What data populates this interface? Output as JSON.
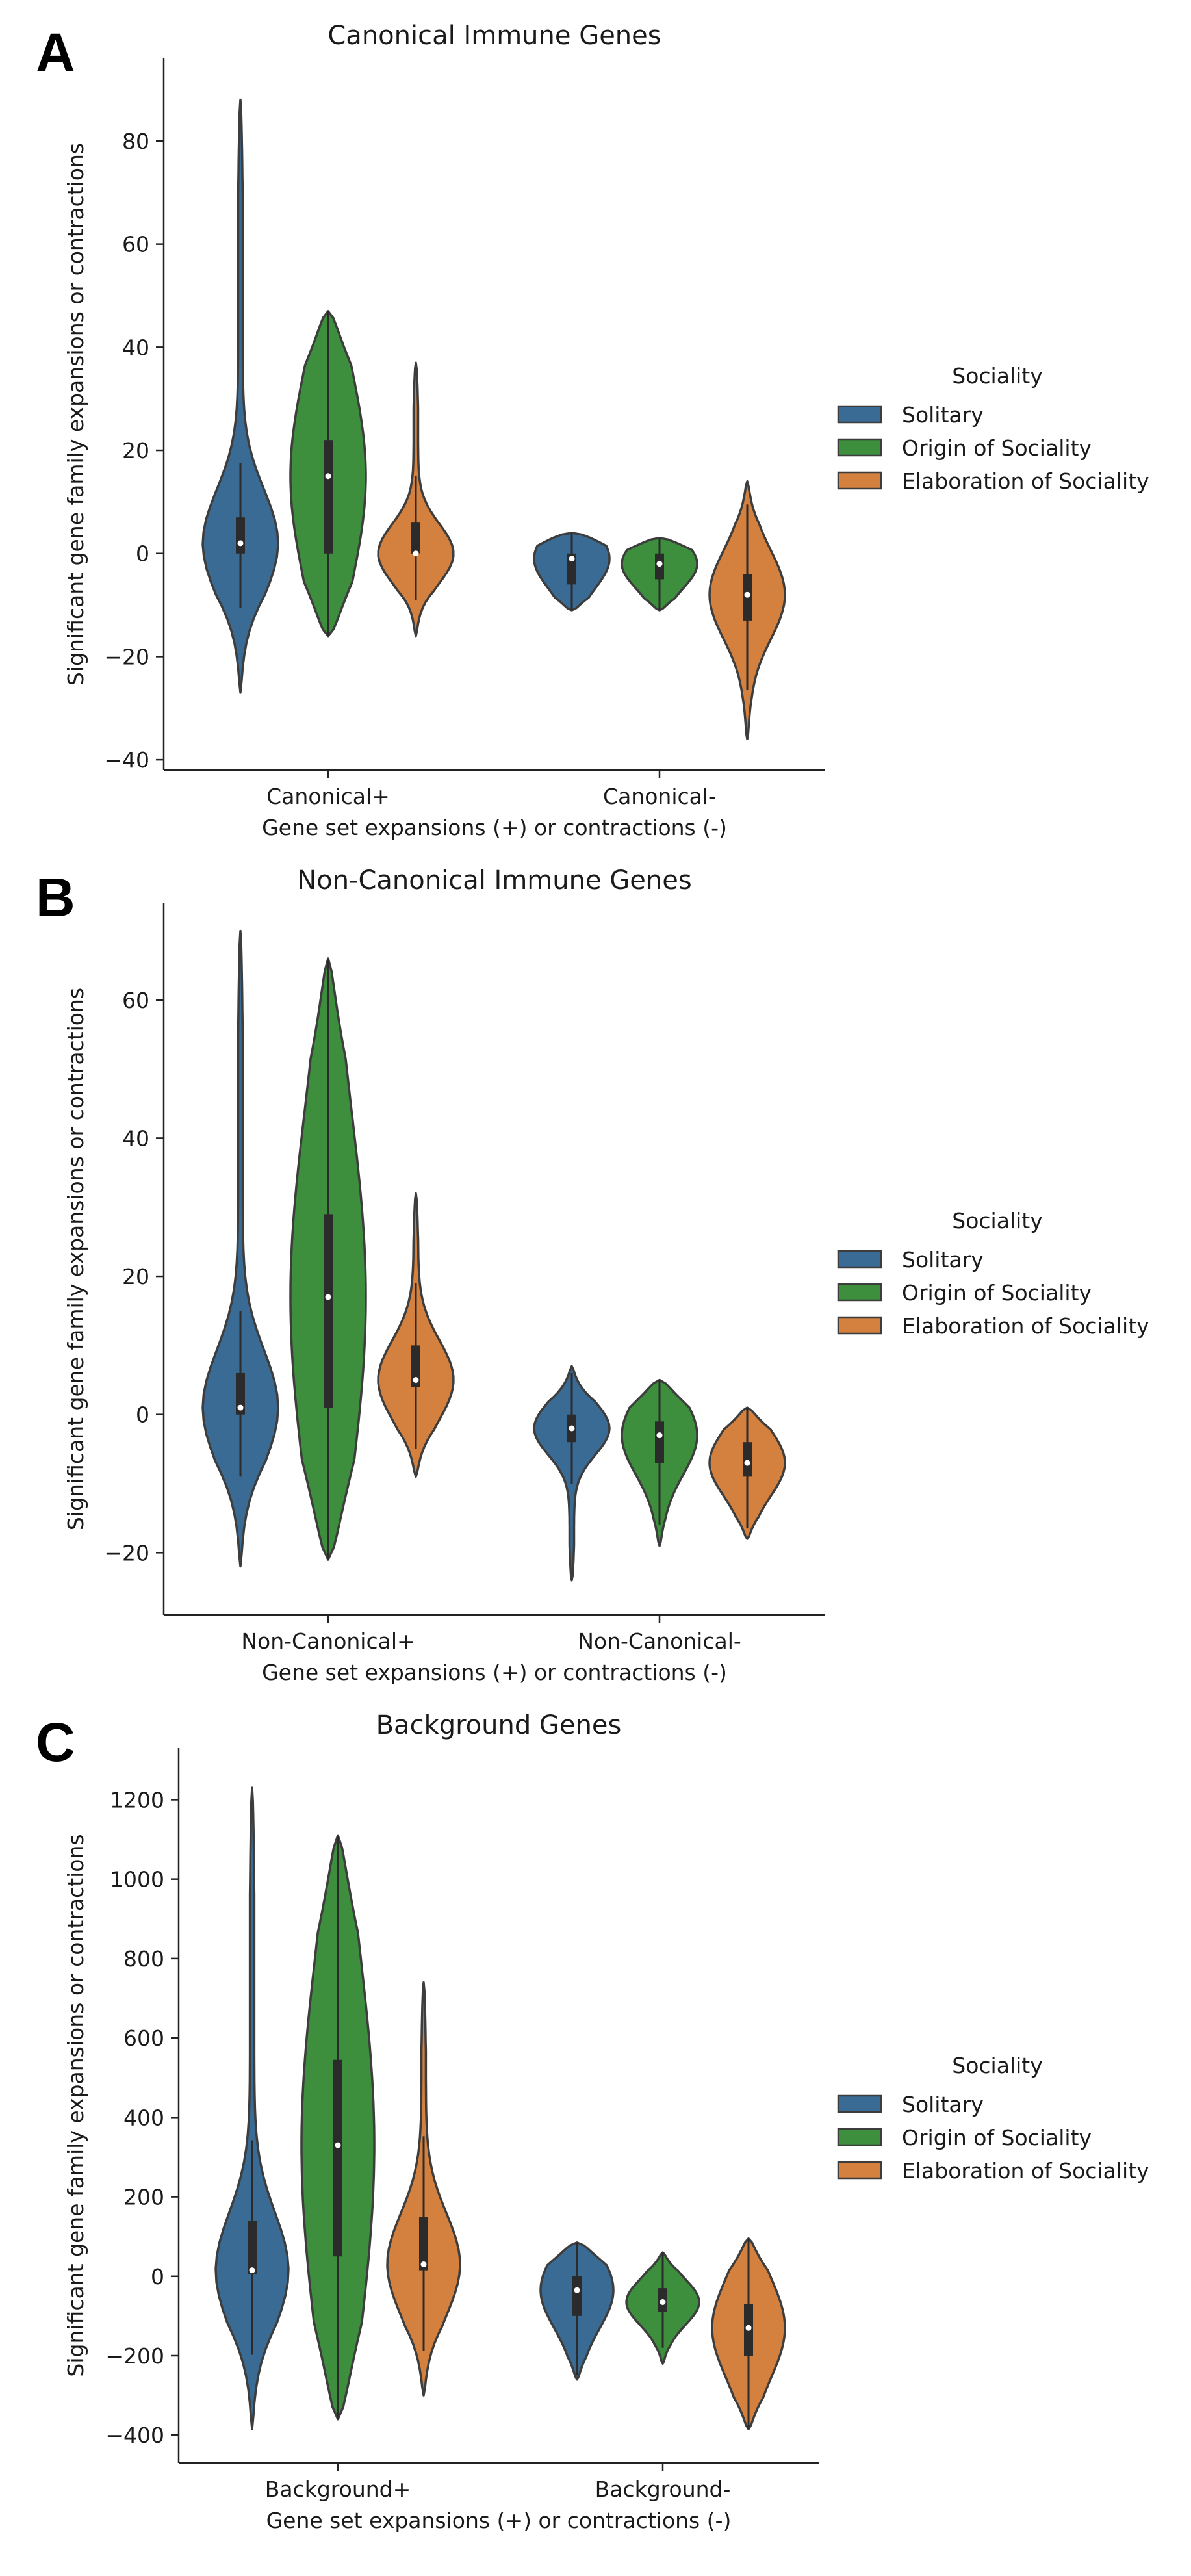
{
  "colors": {
    "solitary": "#3a6b94",
    "origin": "#3d8f3d",
    "elaboration": "#d4803f",
    "outline": "#3d3d3d"
  },
  "legend": {
    "title": "Sociality",
    "entries": [
      "Solitary",
      "Origin of Sociality",
      "Elaboration of Sociality"
    ]
  },
  "chart_data": [
    {
      "panel": "A",
      "type": "violin",
      "title": "Canonical Immune Genes",
      "xlabel": "Gene set expansions (+) or contractions (-)",
      "ylabel": "Significant gene family expansions or contractions",
      "categories": [
        "Canonical+",
        "Canonical-"
      ],
      "ylim": [
        -42,
        96
      ],
      "yticks": [
        -40,
        -20,
        0,
        20,
        40,
        60,
        80
      ],
      "series": [
        {
          "name": "Solitary",
          "min": [
            -27,
            -11
          ],
          "max": [
            88,
            4
          ],
          "q1": [
            0,
            -6
          ],
          "median": [
            2,
            -1
          ],
          "q3": [
            7,
            0
          ]
        },
        {
          "name": "Origin of Sociality",
          "min": [
            -16,
            -11
          ],
          "max": [
            47,
            3
          ],
          "q1": [
            0,
            -5
          ],
          "median": [
            15,
            -2
          ],
          "q3": [
            22,
            0
          ]
        },
        {
          "name": "Elaboration of Sociality",
          "min": [
            -16,
            -36
          ],
          "max": [
            37,
            14
          ],
          "q1": [
            0,
            -13
          ],
          "median": [
            0,
            -8
          ],
          "q3": [
            6,
            -4
          ]
        }
      ]
    },
    {
      "panel": "B",
      "type": "violin",
      "title": "Non-Canonical Immune Genes",
      "xlabel": "Gene set expansions (+) or contractions (-)",
      "ylabel": "Significant gene family expansions or contractions",
      "categories": [
        "Non-Canonical+",
        "Non-Canonical-"
      ],
      "ylim": [
        -29,
        74
      ],
      "yticks": [
        -20,
        0,
        20,
        40,
        60
      ],
      "series": [
        {
          "name": "Solitary",
          "min": [
            -22,
            -24
          ],
          "max": [
            70,
            7
          ],
          "q1": [
            0,
            -4
          ],
          "median": [
            1,
            -2
          ],
          "q3": [
            6,
            0
          ]
        },
        {
          "name": "Origin of Sociality",
          "min": [
            -21,
            -19
          ],
          "max": [
            66,
            5
          ],
          "q1": [
            1,
            -7
          ],
          "median": [
            17,
            -3
          ],
          "q3": [
            29,
            -1
          ]
        },
        {
          "name": "Elaboration of Sociality",
          "min": [
            -9,
            -18
          ],
          "max": [
            32,
            1
          ],
          "q1": [
            4,
            -9
          ],
          "median": [
            5,
            -7
          ],
          "q3": [
            10,
            -4
          ]
        }
      ]
    },
    {
      "panel": "C",
      "type": "violin",
      "title": "Background Genes",
      "xlabel": "Gene set expansions (+) or contractions (-)",
      "ylabel": "Significant gene family expansions or contractions",
      "categories": [
        "Background+",
        "Background-"
      ],
      "ylim": [
        -470,
        1330
      ],
      "yticks": [
        -400,
        -200,
        0,
        200,
        400,
        600,
        800,
        1000,
        1200
      ],
      "series": [
        {
          "name": "Solitary",
          "min": [
            -385,
            -260
          ],
          "max": [
            1230,
            85
          ],
          "q1": [
            5,
            -100
          ],
          "median": [
            15,
            -35
          ],
          "q3": [
            140,
            0
          ]
        },
        {
          "name": "Origin of Sociality",
          "min": [
            -360,
            -220
          ],
          "max": [
            1110,
            60
          ],
          "q1": [
            50,
            -90
          ],
          "median": [
            330,
            -65
          ],
          "q3": [
            545,
            -30
          ]
        },
        {
          "name": "Elaboration of Sociality",
          "min": [
            -300,
            -385
          ],
          "max": [
            740,
            95
          ],
          "q1": [
            15,
            -200
          ],
          "median": [
            30,
            -130
          ],
          "q3": [
            150,
            -70
          ]
        }
      ]
    }
  ]
}
